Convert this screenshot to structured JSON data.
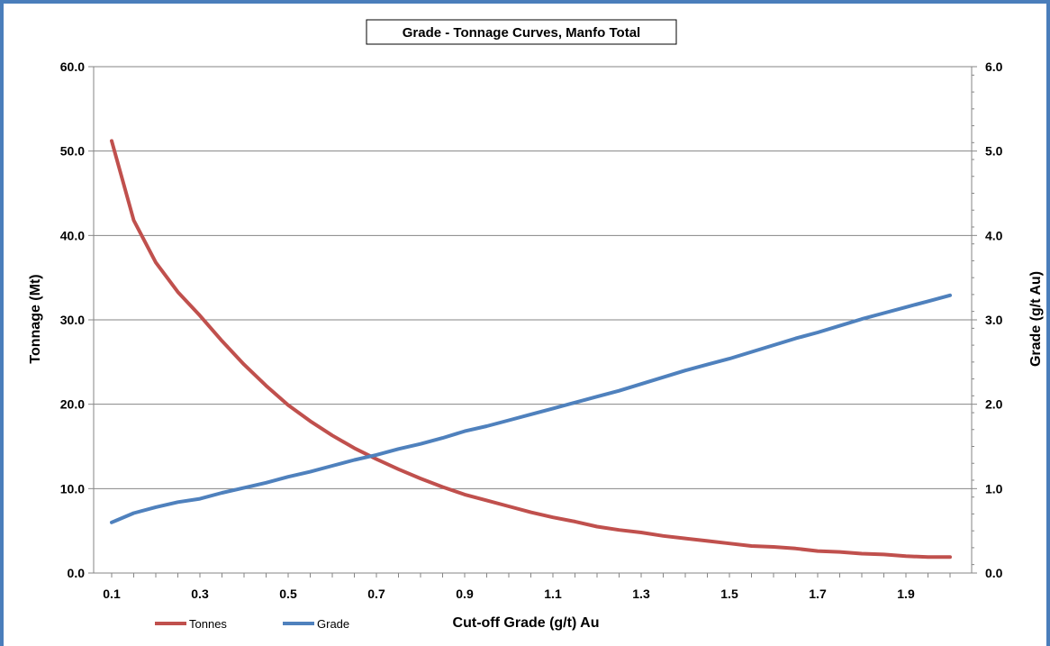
{
  "chart_data": {
    "type": "line",
    "title": "Grade - Tonnage Curves, Manfo Total",
    "xlabel": "Cut-off Grade (g/t) Au",
    "ylabel": "Tonnage (Mt)",
    "y2label": "Grade (g/t Au)",
    "x": [
      0.1,
      0.15,
      0.2,
      0.25,
      0.3,
      0.35,
      0.4,
      0.45,
      0.5,
      0.55,
      0.6,
      0.65,
      0.7,
      0.75,
      0.8,
      0.85,
      0.9,
      0.95,
      1.0,
      1.05,
      1.1,
      1.15,
      1.2,
      1.25,
      1.3,
      1.35,
      1.4,
      1.45,
      1.5,
      1.55,
      1.6,
      1.65,
      1.7,
      1.75,
      1.8,
      1.85,
      1.9,
      1.95,
      2.0
    ],
    "xticks": [
      "0.1",
      "0.3",
      "0.5",
      "0.7",
      "0.9",
      "1.1",
      "1.3",
      "1.5",
      "1.7",
      "1.9"
    ],
    "xtick_values": [
      0.1,
      0.3,
      0.5,
      0.7,
      0.9,
      1.1,
      1.3,
      1.5,
      1.7,
      1.9
    ],
    "xlim": [
      0.1,
      2.0
    ],
    "ylim": [
      0,
      60
    ],
    "yticks": [
      "0.0",
      "10.0",
      "20.0",
      "30.0",
      "40.0",
      "50.0",
      "60.0"
    ],
    "y2lim": [
      0,
      6
    ],
    "y2ticks": [
      "0.0",
      "1.0",
      "2.0",
      "3.0",
      "4.0",
      "5.0",
      "6.0"
    ],
    "grid": true,
    "legend_position": "bottom-left",
    "series": [
      {
        "name": "Tonnes",
        "axis": "left",
        "color": "#c0504d",
        "values": [
          51.2,
          41.8,
          36.8,
          33.3,
          30.5,
          27.5,
          24.7,
          22.2,
          19.9,
          18.0,
          16.3,
          14.8,
          13.5,
          12.3,
          11.2,
          10.2,
          9.3,
          8.6,
          7.9,
          7.2,
          6.6,
          6.1,
          5.5,
          5.1,
          4.8,
          4.4,
          4.1,
          3.8,
          3.5,
          3.2,
          3.1,
          2.9,
          2.6,
          2.5,
          2.3,
          2.2,
          2.0,
          1.9,
          1.9
        ]
      },
      {
        "name": "Grade",
        "axis": "right",
        "color": "#4f81bd",
        "values": [
          0.6,
          0.71,
          0.78,
          0.84,
          0.88,
          0.95,
          1.01,
          1.07,
          1.14,
          1.2,
          1.27,
          1.34,
          1.4,
          1.47,
          1.53,
          1.6,
          1.68,
          1.74,
          1.81,
          1.88,
          1.95,
          2.02,
          2.09,
          2.16,
          2.24,
          2.32,
          2.4,
          2.47,
          2.54,
          2.62,
          2.7,
          2.78,
          2.85,
          2.93,
          3.01,
          3.08,
          3.15,
          3.22,
          3.29
        ]
      }
    ]
  }
}
